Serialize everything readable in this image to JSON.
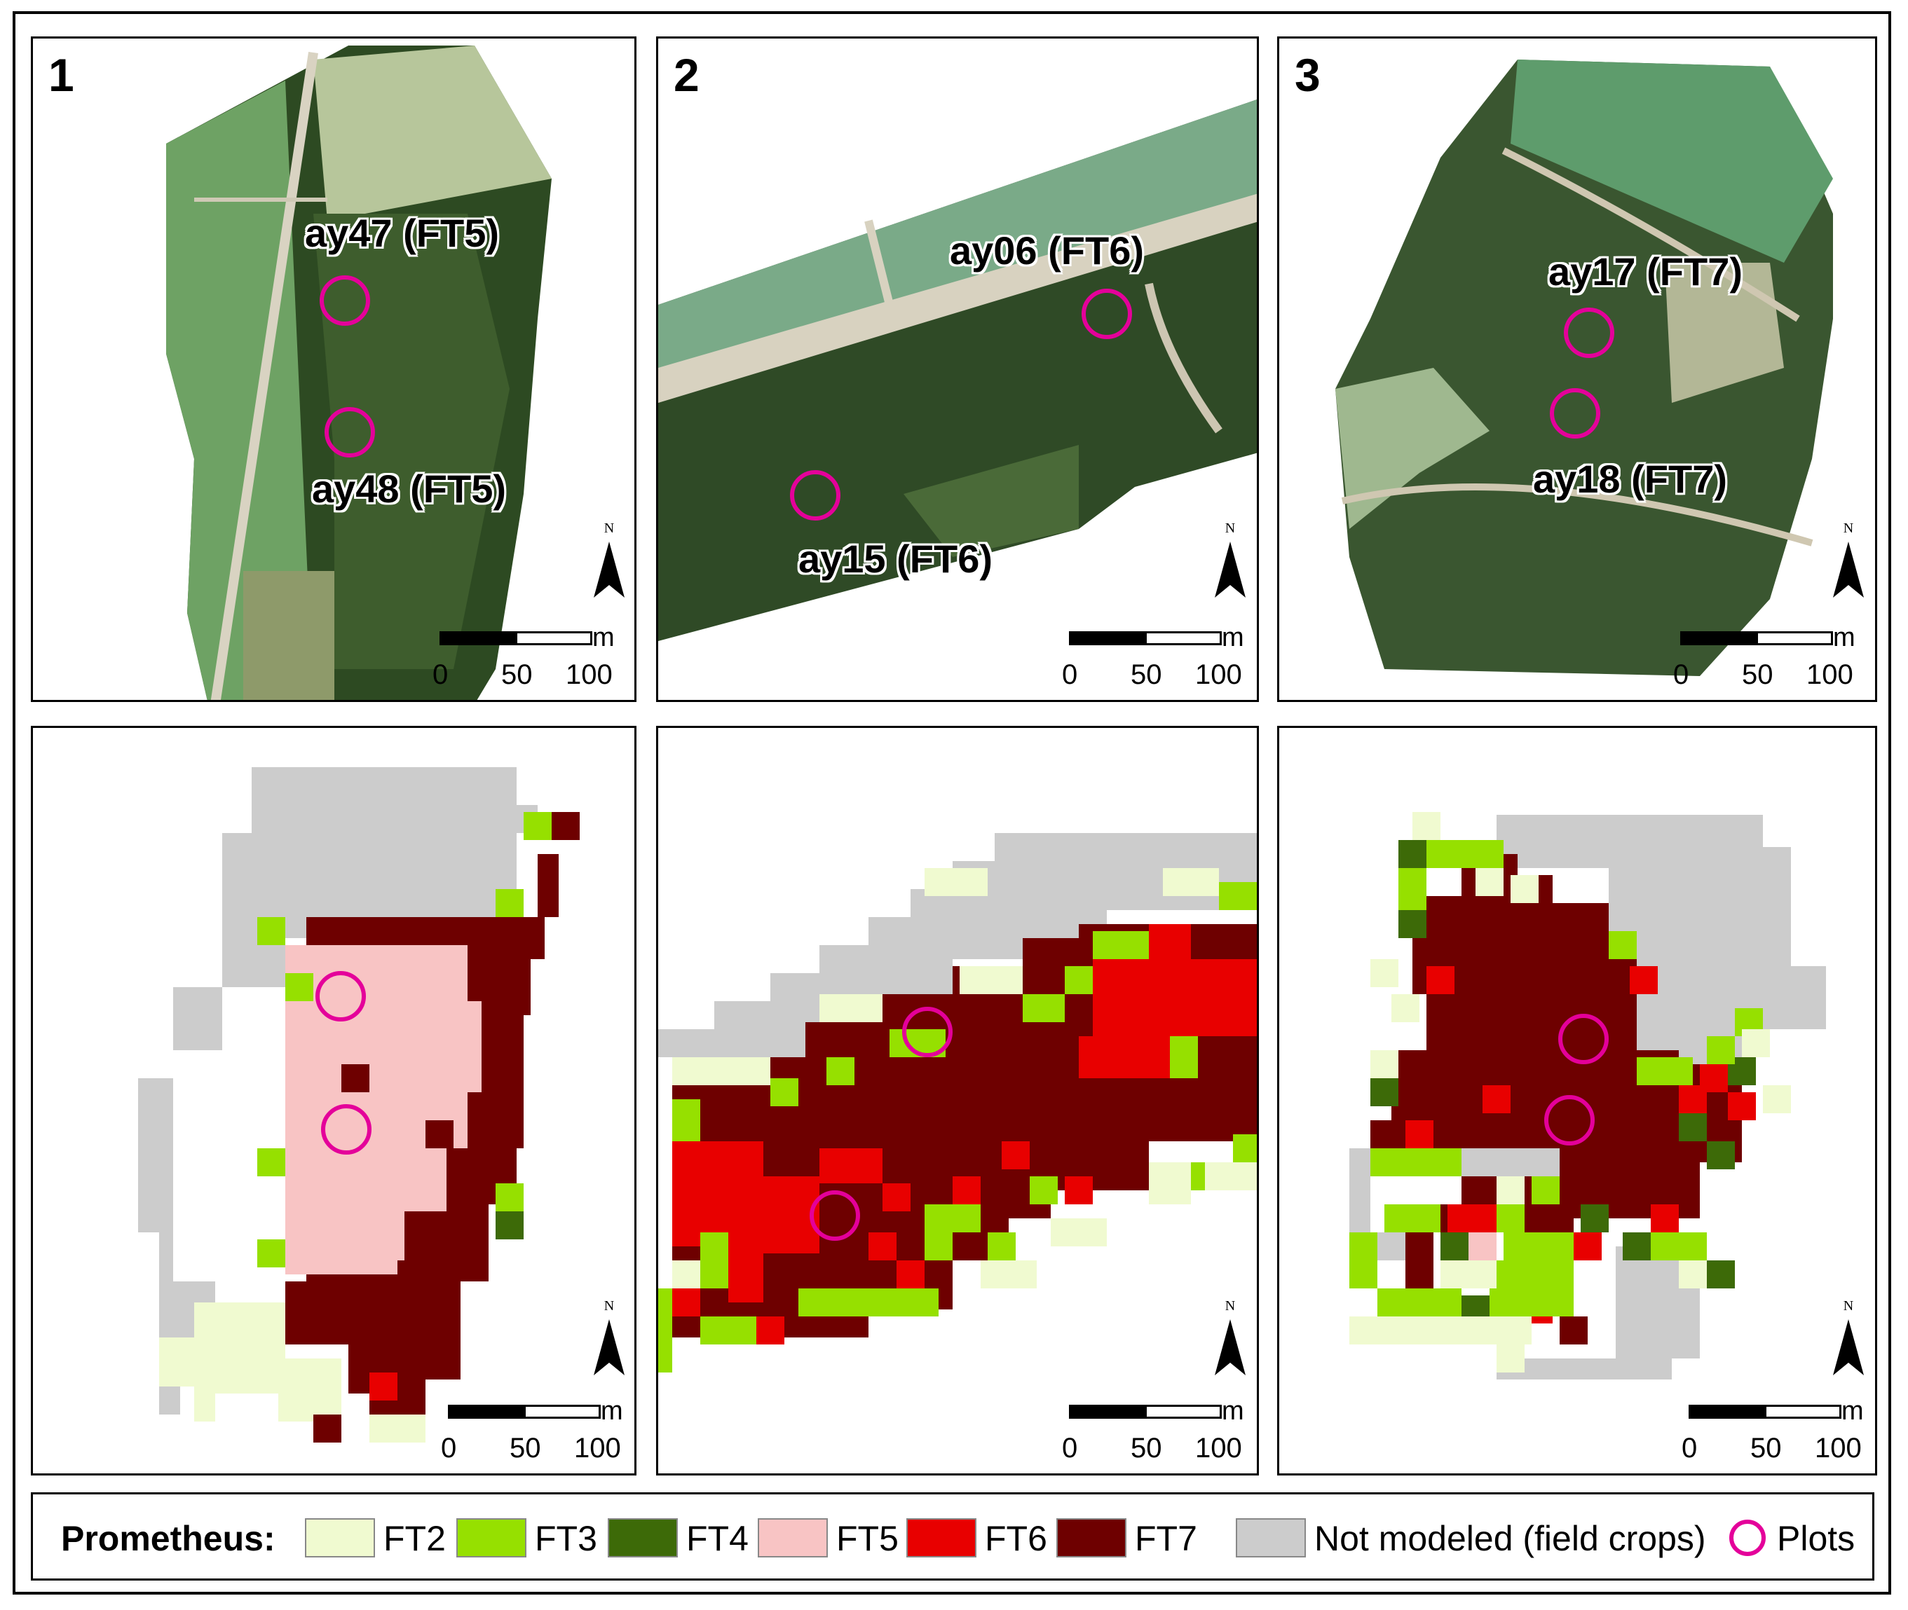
{
  "panels": [
    {
      "number": "1",
      "labels": [
        "ay47 (FT5)",
        "ay48 (FT5)"
      ]
    },
    {
      "number": "2",
      "labels": [
        "ay06 (FT6)",
        "ay15 (FT6)"
      ]
    },
    {
      "number": "3",
      "labels": [
        "ay17 (FT7)",
        "ay18 (FT7)"
      ]
    }
  ],
  "north_label": "N",
  "scale": {
    "unit": "m",
    "ticks": [
      "0",
      "50",
      "100"
    ]
  },
  "legend": {
    "title": "Prometheus:",
    "items": [
      {
        "label": "FT2",
        "color": "#f0fad0"
      },
      {
        "label": "FT3",
        "color": "#96e000"
      },
      {
        "label": "FT4",
        "color": "#3d6a08"
      },
      {
        "label": "FT5",
        "color": "#f8c4c4"
      },
      {
        "label": "FT6",
        "color": "#e80000"
      },
      {
        "label": "FT7",
        "color": "#6e0000"
      },
      {
        "label": "Not modeled (field crops)",
        "color": "#cccccc"
      }
    ],
    "plots_label": "Plots",
    "plots_color": "#e4009a"
  }
}
